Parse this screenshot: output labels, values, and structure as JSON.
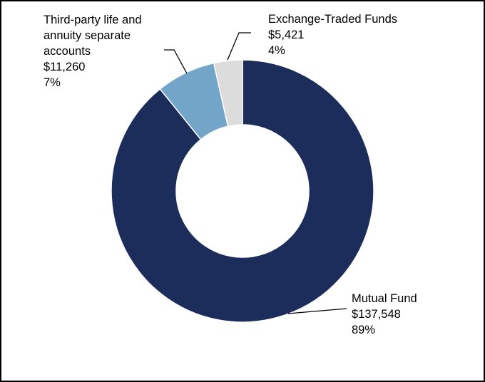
{
  "chart_data": {
    "type": "pie",
    "donut": true,
    "title": "",
    "legend": "none",
    "slices": [
      {
        "name": "Mutual Fund",
        "value": 137548,
        "value_label": "$137,548",
        "percent_label": "89%",
        "color": "#1c2d5c"
      },
      {
        "name": "Third-party life and annuity separate accounts",
        "name_lines": [
          "Third-party life and",
          "annuity separate",
          "accounts"
        ],
        "value": 11260,
        "value_label": "$11,260",
        "percent_label": "7%",
        "color": "#73a5c8"
      },
      {
        "name": "Exchange-Traded Funds",
        "value": 5421,
        "value_label": "$5,421",
        "percent_label": "4%",
        "color": "#dcdcdc"
      }
    ]
  }
}
